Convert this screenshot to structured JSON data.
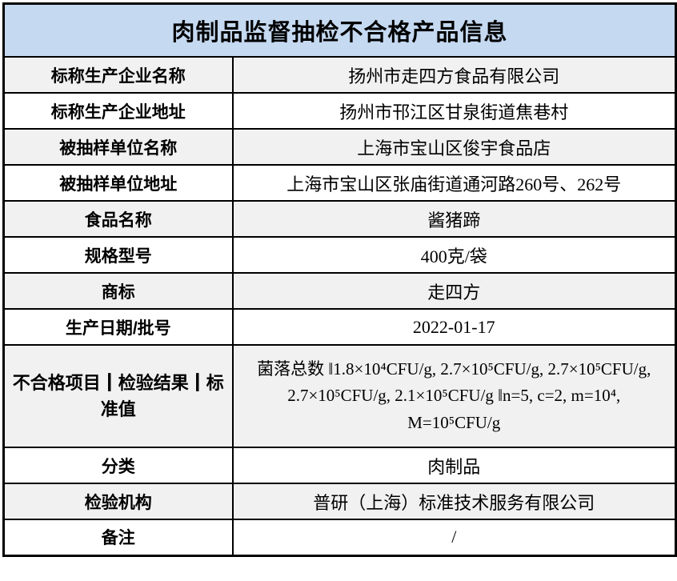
{
  "colors": {
    "title_bg": "#C5D9F1",
    "stripe_bg": "#F1F1F1",
    "border": "#000000",
    "text": "#000000"
  },
  "table": {
    "title": "肉制品监督抽检不合格产品信息",
    "rows": [
      {
        "label": "标称生产企业名称",
        "value": "扬州市走四方食品有限公司"
      },
      {
        "label": "标称生产企业地址",
        "value": "扬州市邗江区甘泉街道焦巷村"
      },
      {
        "label": "被抽样单位名称",
        "value": "上海市宝山区俊宇食品店"
      },
      {
        "label": "被抽样单位地址",
        "value": "上海市宝山区张庙街道通河路260号、262号"
      },
      {
        "label": "食品名称",
        "value": "酱猪蹄"
      },
      {
        "label": "规格型号",
        "value": "400克/袋"
      },
      {
        "label": "商标",
        "value": "走四方"
      },
      {
        "label": "生产日期/批号",
        "value": "2022-01-17"
      },
      {
        "label": "不合格项目┃检验结果┃标准值",
        "value": "菌落总数 ‖1.8×10⁴CFU/g, 2.7×10⁵CFU/g, 2.7×10⁵CFU/g, 2.7×10⁵CFU/g, 2.1×10⁵CFU/g ‖n=5, c=2, m=10⁴, M=10⁵CFU/g"
      },
      {
        "label": "分类",
        "value": "肉制品"
      },
      {
        "label": "检验机构",
        "value": "普研（上海）标准技术服务有限公司"
      },
      {
        "label": "备注",
        "value": "/"
      }
    ]
  }
}
